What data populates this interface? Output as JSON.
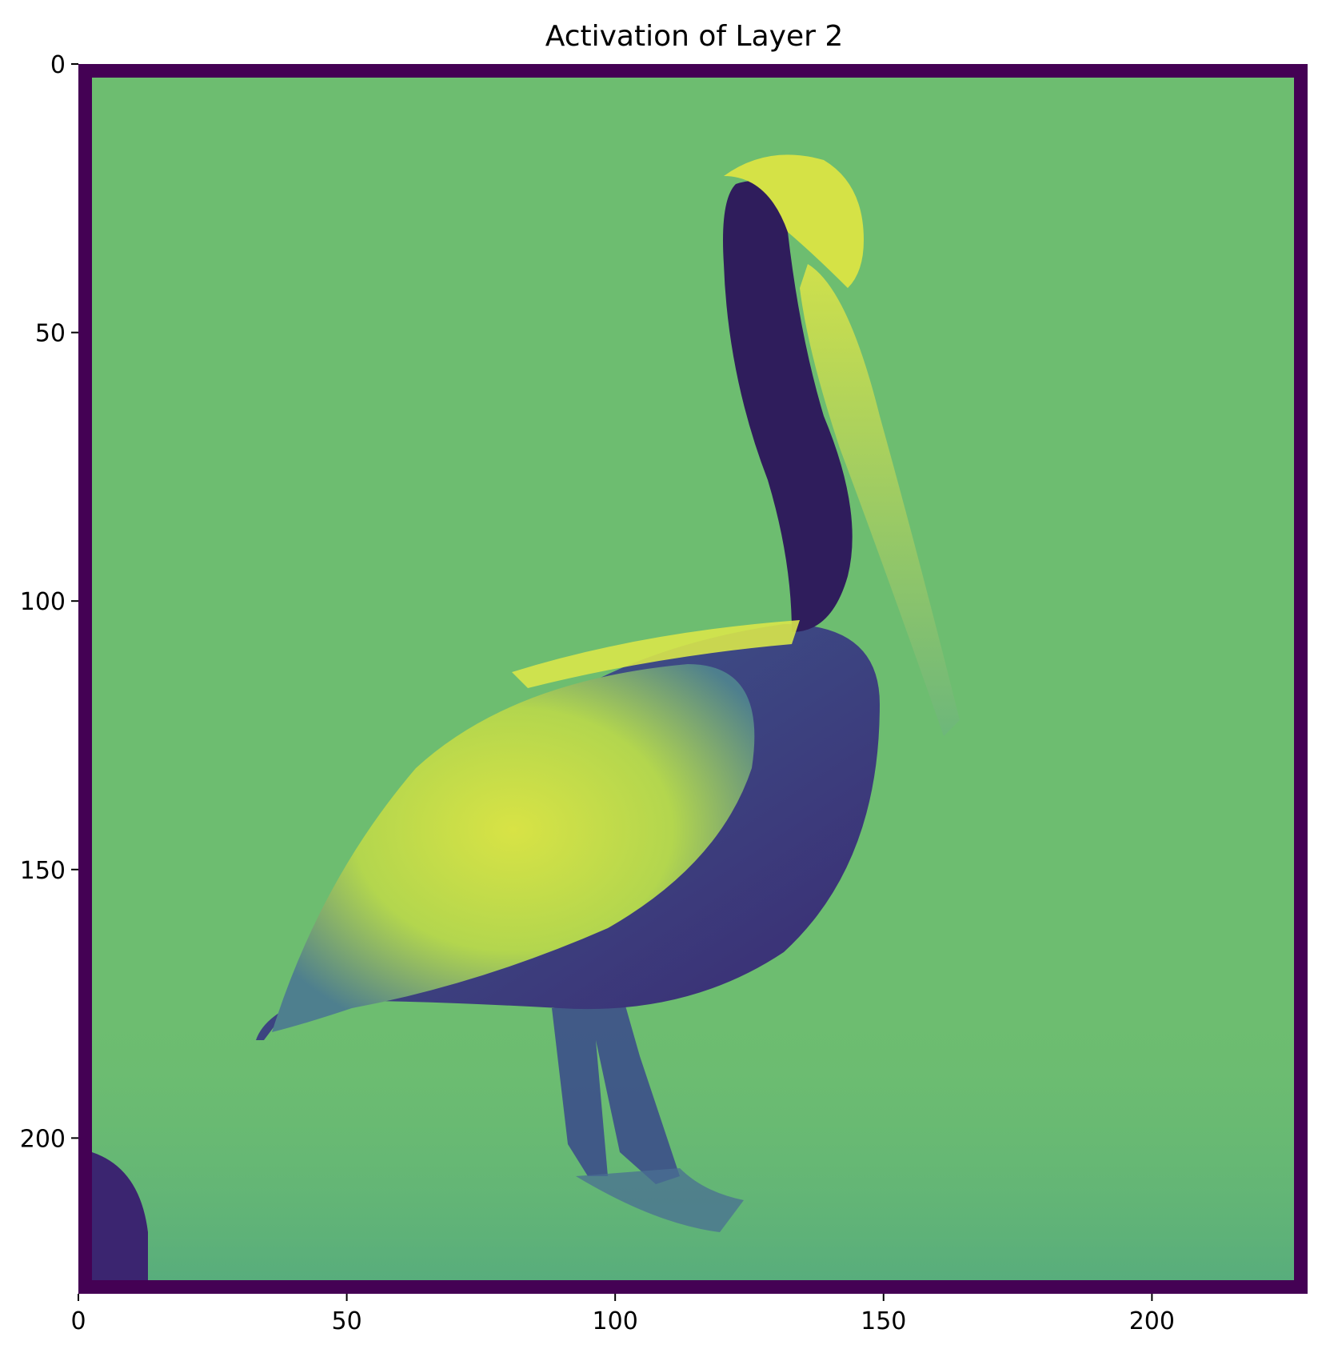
{
  "chart_data": {
    "type": "heatmap",
    "title": "Activation of Layer 2",
    "xlabel": "",
    "ylabel": "",
    "xlim": [
      0,
      229
    ],
    "ylim": [
      229,
      0
    ],
    "x_ticks": [
      0,
      50,
      100,
      150,
      200
    ],
    "y_ticks": [
      0,
      50,
      100,
      150,
      200
    ],
    "x_tick_labels": [
      "0",
      "50",
      "100",
      "150",
      "200"
    ],
    "y_tick_labels": [
      "0",
      "50",
      "100",
      "150",
      "200"
    ],
    "grid": false,
    "legend": "none",
    "colormap": "viridis",
    "colors": {
      "border": "#440154",
      "background": "#6dbd70",
      "dark": "#3b2a6e",
      "mid": "#3a8c8c",
      "bright": "#d2e24a"
    },
    "image_description_semantic": "activation map of a pelican standing on a surface"
  }
}
